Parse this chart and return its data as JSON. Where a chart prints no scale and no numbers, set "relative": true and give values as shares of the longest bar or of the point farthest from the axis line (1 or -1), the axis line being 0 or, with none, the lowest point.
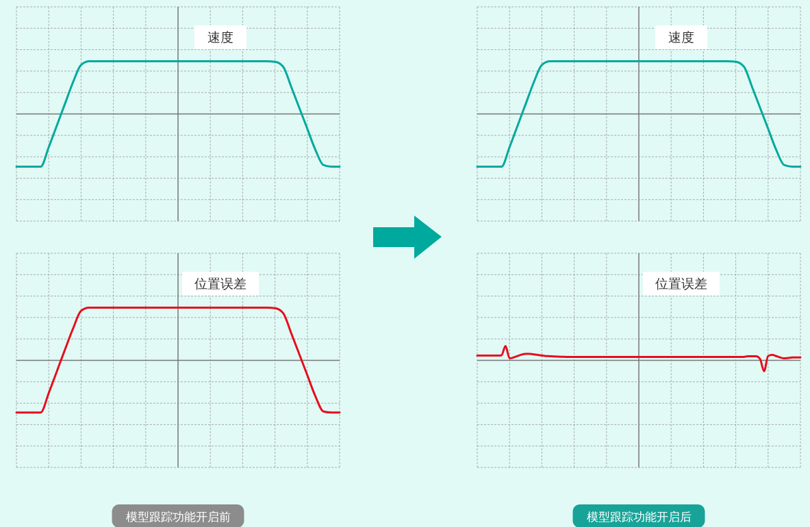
{
  "chart_data": [
    {
      "type": "line",
      "title": "速度",
      "relative": true,
      "grid": true,
      "categories": [
        null,
        null,
        null,
        null,
        null,
        null,
        null,
        null,
        null,
        null,
        null,
        null,
        null,
        null,
        null,
        null,
        null,
        null,
        null,
        null,
        null,
        null,
        null,
        null,
        null,
        null,
        null,
        null,
        null,
        null,
        null,
        null,
        null,
        null,
        null,
        null,
        null,
        null,
        null,
        null,
        null
      ],
      "series": [
        {
          "color": "#00a99d",
          "values": [
            -1,
            -1,
            -1,
            -1,
            -0.63,
            -0.22,
            0.19,
            0.6,
            0.93,
            1,
            1,
            1,
            1,
            1,
            1,
            1,
            1,
            1,
            1,
            1,
            1,
            1,
            1,
            1,
            1,
            1,
            1,
            1,
            1,
            1,
            1,
            1,
            0.99,
            0.9,
            0.52,
            0.12,
            -0.28,
            -0.68,
            -0.97,
            -1,
            -1
          ]
        }
      ]
    },
    {
      "type": "line",
      "title": "速度",
      "relative": true,
      "grid": true,
      "categories": [
        null,
        null,
        null,
        null,
        null,
        null,
        null,
        null,
        null,
        null,
        null,
        null,
        null,
        null,
        null,
        null,
        null,
        null,
        null,
        null,
        null,
        null,
        null,
        null,
        null,
        null,
        null,
        null,
        null,
        null,
        null,
        null,
        null,
        null,
        null,
        null,
        null,
        null,
        null,
        null,
        null
      ],
      "series": [
        {
          "color": "#00a99d",
          "values": [
            -1,
            -1,
            -1,
            -1,
            -0.63,
            -0.22,
            0.19,
            0.6,
            0.93,
            1,
            1,
            1,
            1,
            1,
            1,
            1,
            1,
            1,
            1,
            1,
            1,
            1,
            1,
            1,
            1,
            1,
            1,
            1,
            1,
            1,
            1,
            1,
            0.99,
            0.9,
            0.52,
            0.12,
            -0.28,
            -0.68,
            -0.97,
            -1,
            -1
          ]
        }
      ]
    },
    {
      "type": "line",
      "title": "位置误差",
      "relative": true,
      "grid": true,
      "annotations": [
        "模型跟踪功能开启前"
      ],
      "categories": [
        null,
        null,
        null,
        null,
        null,
        null,
        null,
        null,
        null,
        null,
        null,
        null,
        null,
        null,
        null,
        null,
        null,
        null,
        null,
        null,
        null,
        null,
        null,
        null,
        null,
        null,
        null,
        null,
        null,
        null,
        null,
        null,
        null,
        null,
        null,
        null,
        null,
        null,
        null,
        null,
        null
      ],
      "series": [
        {
          "color": "#e60e1e",
          "values": [
            -0.99,
            -0.99,
            -0.99,
            -0.99,
            -0.62,
            -0.21,
            0.2,
            0.6,
            0.94,
            1,
            1,
            1,
            1,
            1,
            1,
            1,
            1,
            1,
            1,
            1,
            1,
            1,
            1,
            1,
            1,
            1,
            1,
            1,
            1,
            1,
            1,
            1,
            0.99,
            0.9,
            0.52,
            0.12,
            -0.28,
            -0.68,
            -0.97,
            -0.99,
            -0.99
          ]
        }
      ]
    },
    {
      "type": "line",
      "title": "位置误差",
      "relative": true,
      "grid": true,
      "annotations": [
        "模型跟踪功能开启后"
      ],
      "categories": [
        null,
        null,
        null,
        null,
        null,
        null,
        null,
        null,
        null,
        null,
        null,
        null,
        null,
        null,
        null,
        null,
        null,
        null,
        null,
        null,
        null,
        null,
        null,
        null,
        null,
        null,
        null,
        null,
        null,
        null,
        null,
        null,
        null,
        null,
        null,
        null,
        null,
        null,
        null,
        null,
        null,
        null,
        null,
        null,
        null,
        null,
        null,
        null,
        null,
        null,
        null,
        null,
        null,
        null,
        null,
        null,
        null,
        null,
        null,
        null,
        null,
        null,
        null,
        null,
        null,
        null,
        null,
        null,
        null,
        null,
        null,
        null,
        null,
        null,
        null,
        null,
        null,
        null,
        null,
        null,
        null
      ],
      "series": [
        {
          "color": "#e60e1e",
          "values": [
            0.33,
            0.33,
            0.33,
            0.33,
            0.33,
            0.33,
            0.35,
            1,
            0.14,
            0.2,
            0.3,
            0.4,
            0.45,
            0.45,
            0.42,
            0.38,
            0.33,
            0.3,
            0.29,
            0.27,
            0.26,
            0.25,
            0.24,
            0.24,
            0.24,
            0.24,
            0.24,
            0.24,
            0.24,
            0.24,
            0.24,
            0.24,
            0.24,
            0.24,
            0.24,
            0.24,
            0.24,
            0.24,
            0.24,
            0.24,
            0.24,
            0.24,
            0.24,
            0.24,
            0.24,
            0.24,
            0.24,
            0.24,
            0.24,
            0.24,
            0.24,
            0.24,
            0.24,
            0.24,
            0.24,
            0.24,
            0.24,
            0.24,
            0.24,
            0.24,
            0.24,
            0.24,
            0.24,
            0.24,
            0.24,
            0.24,
            0.24,
            0.28,
            0.28,
            0.28,
            0.1,
            -0.76,
            0.3,
            0.38,
            0.3,
            0.2,
            0.14,
            0.17,
            0.2,
            0.2,
            0.2
          ]
        }
      ]
    }
  ]
}
